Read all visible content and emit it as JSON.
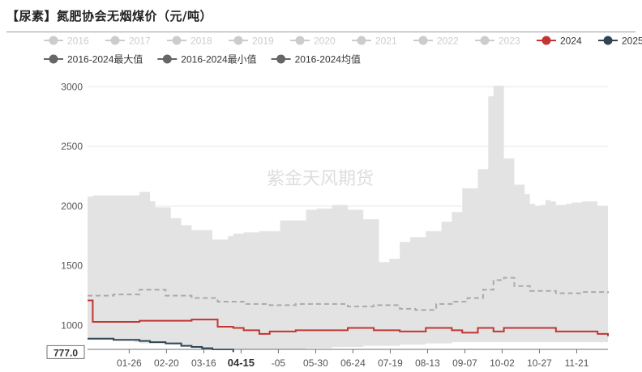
{
  "title": "【尿素】氮肥协会无烟煤价（元/吨）",
  "watermark": "紫金天风期货",
  "chart_data": {
    "type": "area+line",
    "title": "【尿素】氮肥协会无烟煤价（元/吨）",
    "ylim": [
      800,
      3050
    ],
    "yticks": [
      1000,
      1500,
      2000,
      2500,
      3000
    ],
    "xticks": [
      "01-26",
      "02-20",
      "03-16",
      "04-15",
      "-05",
      "05-30",
      "06-24",
      "07-19",
      "08-13",
      "09-07",
      "10-02",
      "10-27",
      "11-21"
    ],
    "xtick_highlight": "04-15",
    "legend": [
      {
        "name": "2016",
        "color": "#cccccc",
        "marker": "circle",
        "inactive": true
      },
      {
        "name": "2017",
        "color": "#cccccc",
        "marker": "circle",
        "inactive": true
      },
      {
        "name": "2018",
        "color": "#cccccc",
        "marker": "circle",
        "inactive": true
      },
      {
        "name": "2019",
        "color": "#cccccc",
        "marker": "circle",
        "inactive": true
      },
      {
        "name": "2020",
        "color": "#cccccc",
        "marker": "circle",
        "inactive": true
      },
      {
        "name": "2021",
        "color": "#cccccc",
        "marker": "circle",
        "inactive": true
      },
      {
        "name": "2022",
        "color": "#cccccc",
        "marker": "circle",
        "inactive": true
      },
      {
        "name": "2023",
        "color": "#cccccc",
        "marker": "circle",
        "inactive": true
      },
      {
        "name": "2024",
        "color": "#c23531",
        "marker": "circle",
        "inactive": false
      },
      {
        "name": "2025",
        "color": "#2f4554",
        "marker": "circle",
        "inactive": false
      },
      {
        "name": "2016-2024最大值",
        "color": "#666666",
        "marker": "circle",
        "inactive": false
      },
      {
        "name": "2016-2024最小值",
        "color": "#666666",
        "marker": "circle",
        "inactive": false
      },
      {
        "name": "2016-2024均值",
        "color": "#666666",
        "marker": "circle",
        "inactive": false
      }
    ],
    "range_band": {
      "x": [
        0,
        0.01,
        0.09,
        0.1,
        0.12,
        0.13,
        0.16,
        0.18,
        0.2,
        0.24,
        0.27,
        0.28,
        0.3,
        0.33,
        0.37,
        0.42,
        0.44,
        0.47,
        0.5,
        0.53,
        0.56,
        0.58,
        0.6,
        0.62,
        0.65,
        0.68,
        0.7,
        0.72,
        0.75,
        0.77,
        0.78,
        0.8,
        0.82,
        0.84,
        0.85,
        0.86,
        0.87,
        0.88,
        0.89,
        0.9,
        0.92,
        0.93,
        0.95,
        0.98,
        1
      ],
      "max": [
        2080,
        2090,
        2090,
        2120,
        2040,
        1990,
        1900,
        1840,
        1800,
        1720,
        1750,
        1770,
        1780,
        1790,
        1880,
        1970,
        1980,
        2010,
        1970,
        1890,
        1530,
        1560,
        1700,
        1740,
        1790,
        1870,
        1950,
        2150,
        2310,
        2920,
        3010,
        2400,
        2180,
        2100,
        2020,
        2000,
        2010,
        2050,
        2040,
        2010,
        2020,
        2030,
        2040,
        2000,
        2070
      ],
      "min": [
        880,
        880,
        860,
        850,
        850,
        850,
        840,
        830,
        820,
        810,
        810,
        800,
        800,
        800,
        800,
        810,
        810,
        820,
        820,
        830,
        830,
        830,
        840,
        840,
        850,
        850,
        860,
        860,
        860,
        860,
        860,
        860,
        860,
        860,
        860,
        860,
        860,
        860,
        860,
        860,
        860,
        860,
        860,
        860,
        860
      ]
    },
    "series": [
      {
        "name": "2016-2024均值",
        "style": "dashed",
        "color": "#aaaaaa",
        "x": [
          0,
          0.05,
          0.1,
          0.15,
          0.2,
          0.25,
          0.3,
          0.35,
          0.4,
          0.45,
          0.5,
          0.55,
          0.6,
          0.63,
          0.67,
          0.7,
          0.73,
          0.76,
          0.78,
          0.8,
          0.82,
          0.85,
          0.9,
          0.95,
          1
        ],
        "values": [
          1250,
          1260,
          1300,
          1250,
          1230,
          1200,
          1180,
          1170,
          1180,
          1180,
          1160,
          1170,
          1140,
          1130,
          1180,
          1200,
          1230,
          1300,
          1380,
          1400,
          1330,
          1290,
          1270,
          1280,
          1270
        ]
      },
      {
        "name": "2024",
        "style": "solid",
        "color": "#c23531",
        "x": [
          0,
          0.01,
          0.05,
          0.1,
          0.15,
          0.2,
          0.25,
          0.28,
          0.3,
          0.33,
          0.35,
          0.4,
          0.45,
          0.5,
          0.55,
          0.6,
          0.65,
          0.7,
          0.72,
          0.75,
          0.78,
          0.8,
          0.85,
          0.9,
          0.95,
          0.98,
          1
        ],
        "values": [
          1210,
          1030,
          1030,
          1040,
          1040,
          1050,
          990,
          980,
          960,
          930,
          950,
          960,
          960,
          980,
          960,
          950,
          980,
          960,
          940,
          980,
          950,
          980,
          980,
          950,
          950,
          930,
          910
        ]
      },
      {
        "name": "2025",
        "style": "solid",
        "color": "#2f4554",
        "x": [
          0,
          0.02,
          0.05,
          0.08,
          0.1,
          0.12,
          0.15,
          0.18,
          0.2,
          0.22,
          0.24,
          0.26,
          0.28
        ],
        "values": [
          890,
          890,
          880,
          880,
          870,
          860,
          850,
          830,
          820,
          810,
          800,
          800,
          777
        ]
      }
    ],
    "current_value_label": "777.0"
  }
}
